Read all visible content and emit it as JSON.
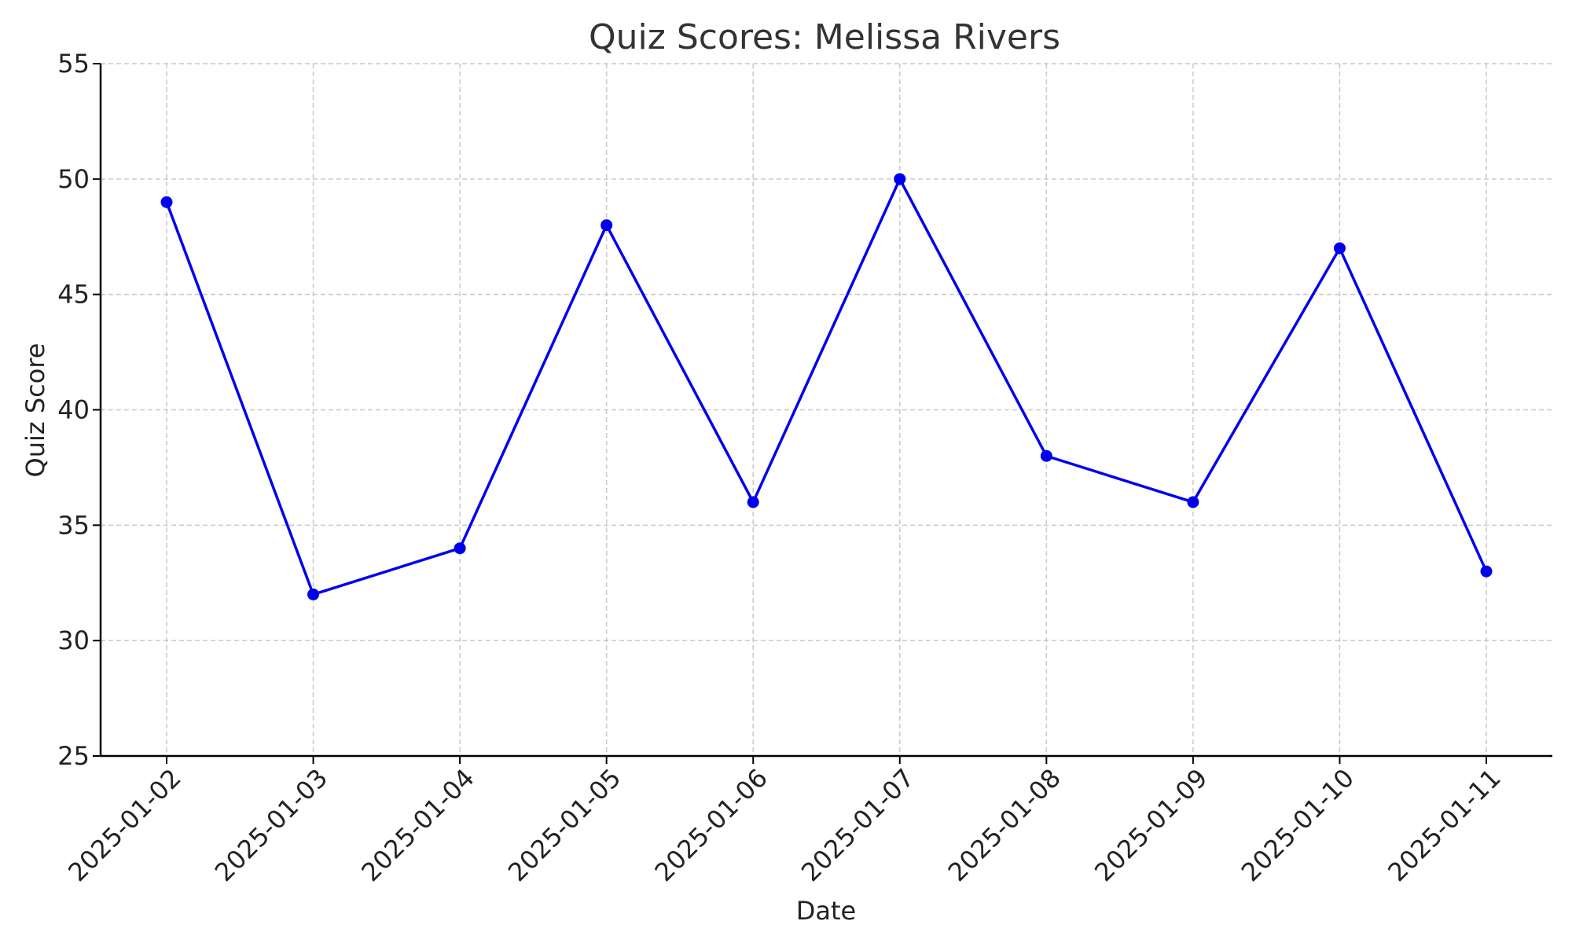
{
  "chart_data": {
    "type": "line",
    "title": "Quiz Scores: Melissa Rivers",
    "xlabel": "Date",
    "ylabel": "Quiz Score",
    "categories": [
      "2025-01-02",
      "2025-01-03",
      "2025-01-04",
      "2025-01-05",
      "2025-01-06",
      "2025-01-07",
      "2025-01-08",
      "2025-01-09",
      "2025-01-10",
      "2025-01-11"
    ],
    "series": [
      {
        "values": [
          49,
          32,
          34,
          48,
          36,
          50,
          38,
          36,
          47,
          33
        ],
        "color": "#0000ee"
      }
    ],
    "ylim": [
      25,
      55
    ],
    "yticks": [
      25,
      30,
      35,
      40,
      45,
      50,
      55
    ],
    "grid": true,
    "marker": "circle"
  }
}
